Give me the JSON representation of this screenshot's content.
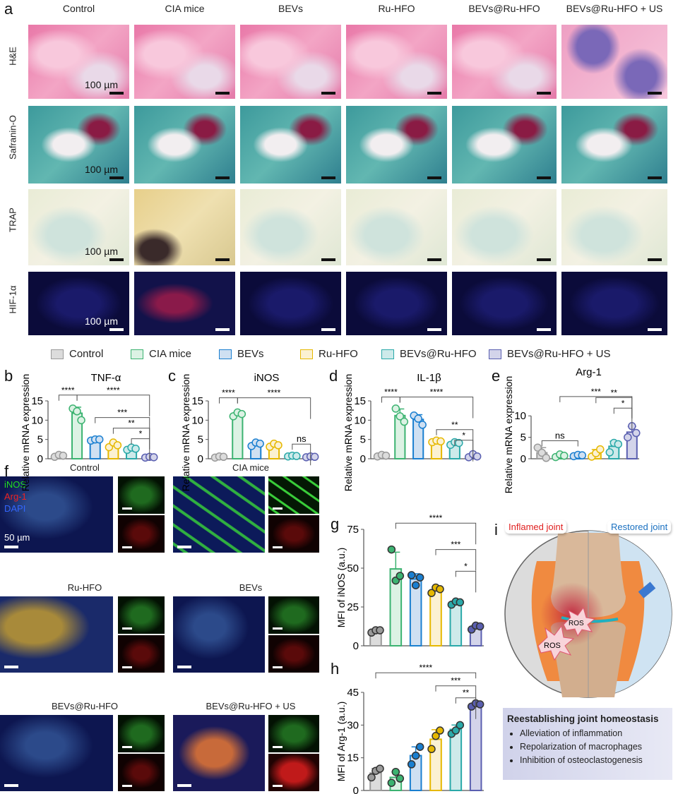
{
  "panel_labels": {
    "a": "a",
    "b": "b",
    "c": "c",
    "d": "d",
    "e": "e",
    "f": "f",
    "g": "g",
    "h": "h",
    "i": "i"
  },
  "panel_a": {
    "columns": [
      "Control",
      "CIA mice",
      "BEVs",
      "Ru-HFO",
      "BEVs@Ru-HFO",
      "BEVs@Ru-HFO + US"
    ],
    "rows": [
      "H&E",
      "Safranin-O",
      "TRAP",
      "HIF-1α"
    ],
    "scale_bar": "100 µm"
  },
  "legend": [
    {
      "name": "Control",
      "stroke": "#9a9a9a",
      "fill": "#dcdcdc"
    },
    {
      "name": "CIA mice",
      "stroke": "#3cb371",
      "fill": "#dcf2e4"
    },
    {
      "name": "BEVs",
      "stroke": "#1a7fd0",
      "fill": "#cfe0f2"
    },
    {
      "name": "Ru-HFO",
      "stroke": "#e6b800",
      "fill": "#fbf1d2"
    },
    {
      "name": "BEVs@Ru-HFO",
      "stroke": "#2aa9a9",
      "fill": "#cdeaea"
    },
    {
      "name": "BEVs@Ru-HFO + US",
      "stroke": "#5a5fb0",
      "fill": "#d3d4ea"
    }
  ],
  "panel_f": {
    "channels": [
      "iNOS",
      "Arg-1",
      "DAPI"
    ],
    "channel_colors": [
      "#22dd22",
      "#ee2222",
      "#3366ff"
    ],
    "groups": [
      "Control",
      "CIA mice",
      "Ru-HFO",
      "BEVs",
      "BEVs@Ru-HFO",
      "BEVs@Ru-HFO + US"
    ],
    "scale_bar": "50 µm"
  },
  "panel_i": {
    "left_tag": "Inflamed joint",
    "right_tag": "Restored joint",
    "ros_labels": [
      "ROS",
      "ROS"
    ],
    "box_title": "Reestablishing joint homeostasis",
    "bullets": [
      "Alleviation of inflammation",
      "Repolarization of macrophages",
      "Inhibition of osteoclastogenesis"
    ]
  },
  "chart_data": [
    {
      "id": "b",
      "type": "bar",
      "title": "TNF-α",
      "ylabel": "Relative mRNA expression",
      "categories": [
        "Control",
        "CIA mice",
        "BEVs",
        "Ru-HFO",
        "BEVs@Ru-HFO",
        "BEVs@Ru-HFO + US"
      ],
      "values": [
        0.8,
        11.8,
        4.9,
        3.6,
        2.6,
        0.4
      ],
      "points": [
        [
          0.5,
          1.0,
          0.8
        ],
        [
          13.0,
          12.3,
          10.0
        ],
        [
          4.7,
          5.0,
          5.0
        ],
        [
          3.0,
          4.2,
          3.5
        ],
        [
          2.3,
          2.9,
          2.6
        ],
        [
          0.3,
          0.5,
          0.4
        ]
      ],
      "ylim": [
        0,
        15
      ],
      "yticks": [
        0,
        5,
        10,
        15
      ],
      "significance": [
        {
          "from": 0,
          "to": 1,
          "y": 16.5,
          "label": "****"
        },
        {
          "from": 1,
          "to": 5,
          "y": 16.5,
          "label": "****"
        },
        {
          "from": 2,
          "to": 5,
          "y": 10.5,
          "label": "***"
        },
        {
          "from": 3,
          "to": 5,
          "y": 7.8,
          "label": "**"
        },
        {
          "from": 4,
          "to": 5,
          "y": 5.2,
          "label": "*"
        }
      ]
    },
    {
      "id": "c",
      "type": "bar",
      "title": "iNOS",
      "ylabel": "Relative mRNA expression",
      "categories": [
        "Control",
        "CIA mice",
        "BEVs",
        "Ru-HFO",
        "BEVs@Ru-HFO",
        "BEVs@Ru-HFO + US"
      ],
      "values": [
        0.5,
        11.5,
        3.8,
        3.5,
        0.7,
        0.5
      ],
      "points": [
        [
          0.3,
          0.6,
          0.5
        ],
        [
          11.0,
          12.0,
          11.6
        ],
        [
          3.3,
          4.2,
          3.9
        ],
        [
          3.1,
          3.9,
          3.5
        ],
        [
          0.6,
          0.8,
          0.7
        ],
        [
          0.4,
          0.6,
          0.5
        ]
      ],
      "ylim": [
        0,
        15
      ],
      "yticks": [
        0,
        5,
        10,
        15
      ],
      "significance": [
        {
          "from": 0,
          "to": 1,
          "y": 15.8,
          "label": "****"
        },
        {
          "from": 1,
          "to": 5,
          "y": 15.8,
          "label": "****"
        },
        {
          "from": 4,
          "to": 5,
          "y": 3.8,
          "label": "ns"
        }
      ]
    },
    {
      "id": "d",
      "type": "bar",
      "title": "IL-1β",
      "ylabel": "Relative mRNA expression",
      "categories": [
        "Control",
        "CIA mice",
        "BEVs",
        "Ru-HFO",
        "BEVs@Ru-HFO",
        "BEVs@Ru-HFO + US"
      ],
      "values": [
        0.8,
        11.2,
        10.2,
        4.5,
        4.0,
        0.7
      ],
      "points": [
        [
          0.6,
          1.0,
          0.8
        ],
        [
          13.0,
          11.0,
          9.6
        ],
        [
          11.2,
          10.4,
          8.8
        ],
        [
          4.3,
          4.7,
          4.5
        ],
        [
          3.6,
          4.3,
          4.1
        ],
        [
          0.4,
          1.2,
          0.6
        ]
      ],
      "ylim": [
        0,
        15
      ],
      "yticks": [
        0,
        5,
        10,
        15
      ],
      "significance": [
        {
          "from": 0,
          "to": 1,
          "y": 16,
          "label": "****"
        },
        {
          "from": 1,
          "to": 5,
          "y": 16,
          "label": "****"
        },
        {
          "from": 3,
          "to": 5,
          "y": 7,
          "label": "**"
        },
        {
          "from": 4,
          "to": 5,
          "y": 4.8,
          "label": "*"
        }
      ]
    },
    {
      "id": "e",
      "type": "bar",
      "title": "Arg-1",
      "ylabel": "Relative mRNA expression",
      "categories": [
        "Control",
        "CIA mice",
        "BEVs",
        "Ru-HFO",
        "BEVs@Ru-HFO",
        "BEVs@Ru-HFO + US"
      ],
      "values": [
        1.4,
        0.8,
        0.8,
        1.3,
        2.9,
        6.2
      ],
      "points": [
        [
          2.6,
          1.4,
          0.2
        ],
        [
          0.4,
          1.0,
          0.7
        ],
        [
          0.6,
          0.9,
          0.8
        ],
        [
          0.5,
          1.3,
          2.2
        ],
        [
          1.5,
          3.7,
          3.4
        ],
        [
          5.0,
          7.6,
          6.0
        ]
      ],
      "ylim": [
        0,
        12.5
      ],
      "yticks": [
        0,
        5,
        10
      ],
      "significance": [
        {
          "from": 0,
          "to": 2,
          "y": 4.2,
          "label": "ns"
        },
        {
          "from": 1,
          "to": 5,
          "y": 14.5,
          "label": "***"
        },
        {
          "from": 3,
          "to": 5,
          "y": 13.2,
          "label": "**"
        },
        {
          "from": 4,
          "to": 5,
          "y": 11.8,
          "label": "*"
        }
      ]
    },
    {
      "id": "g",
      "type": "bar",
      "title": "",
      "ylabel": "MFI of iNOS (a.u.)",
      "categories": [
        "Control",
        "CIA mice",
        "BEVs",
        "Ru-HFO",
        "BEVs@Ru-HFO",
        "BEVs@Ru-HFO + US"
      ],
      "values": [
        9.5,
        49.5,
        43,
        36,
        27.5,
        12
      ],
      "points": [
        [
          8.5,
          10,
          10
        ],
        [
          62,
          42,
          45
        ],
        [
          45.5,
          39,
          44
        ],
        [
          34,
          37.5,
          36.5
        ],
        [
          26.5,
          28.5,
          28
        ],
        [
          10.5,
          13,
          12.5
        ]
      ],
      "ylim": [
        0,
        75
      ],
      "yticks": [
        0,
        25,
        50,
        75
      ],
      "significance": [
        {
          "from": 1,
          "to": 5,
          "y": 79,
          "label": "****"
        },
        {
          "from": 3,
          "to": 5,
          "y": 62,
          "label": "***"
        },
        {
          "from": 4,
          "to": 5,
          "y": 48,
          "label": "*"
        }
      ]
    },
    {
      "id": "h",
      "type": "bar",
      "title": "",
      "ylabel": "MFI of Arg-1 (a.u.)",
      "categories": [
        "Control",
        "CIA mice",
        "BEVs",
        "Ru-HFO",
        "BEVs@Ru-HFO",
        "BEVs@Ru-HFO + US"
      ],
      "values": [
        8,
        6,
        16,
        23.5,
        28,
        39.5
      ],
      "points": [
        [
          6,
          9,
          10
        ],
        [
          3.5,
          8.5,
          5.5
        ],
        [
          12,
          16,
          20
        ],
        [
          19,
          25,
          27.5
        ],
        [
          26,
          27.5,
          30
        ],
        [
          38.5,
          40,
          39.5
        ]
      ],
      "ylim": [
        0,
        45
      ],
      "yticks": [
        0,
        15,
        30,
        45
      ],
      "significance": [
        {
          "from": 0,
          "to": 5,
          "y": 54,
          "label": "****"
        },
        {
          "from": 3,
          "to": 5,
          "y": 48,
          "label": "***"
        },
        {
          "from": 4,
          "to": 5,
          "y": 42.5,
          "label": "**"
        }
      ]
    }
  ]
}
